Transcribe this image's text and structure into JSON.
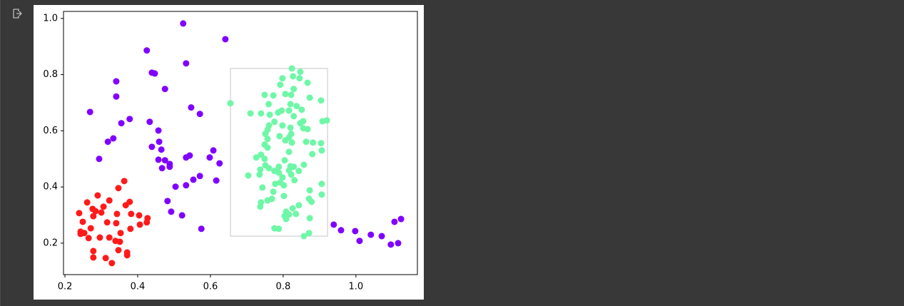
{
  "chart_data": {
    "type": "scatter",
    "xlim": [
      0.196,
      1.169
    ],
    "ylim": [
      0.088,
      1.025
    ],
    "xticks": [
      0.2,
      0.4,
      0.6,
      0.8,
      {
        "value": 1.0,
        "label": "1.0"
      }
    ],
    "yticks": [
      0.2,
      0.4,
      0.6,
      0.8,
      {
        "value": 1.0,
        "label": "1.0"
      }
    ],
    "rectangle": {
      "x": [
        0.655,
        0.922
      ],
      "y": [
        0.225,
        0.822
      ],
      "color": "#d9d9d9"
    },
    "series": [
      {
        "color": "#8000ff",
        "x": [
          0.525,
          0.641,
          0.425,
          0.533,
          0.341,
          0.439,
          0.447,
          0.475,
          0.269,
          0.341,
          0.547,
          0.571,
          0.378,
          0.355,
          0.433,
          0.457,
          0.333,
          0.318,
          0.459,
          0.439,
          0.465,
          0.608,
          0.543,
          0.533,
          0.598,
          0.294,
          0.457,
          0.475,
          0.625,
          0.488,
          0.467,
          0.488,
          0.571,
          0.553,
          0.616,
          0.504,
          0.533,
          0.482,
          0.492,
          0.522,
          0.575,
          0.939,
          0.959,
          0.998,
          1.01,
          1.041,
          1.071,
          1.096,
          1.106,
          1.116,
          1.124
        ],
        "values": [
          0.982,
          0.926,
          0.886,
          0.84,
          0.776,
          0.807,
          0.804,
          0.749,
          0.667,
          0.722,
          0.683,
          0.66,
          0.642,
          0.627,
          0.632,
          0.601,
          0.573,
          0.561,
          0.561,
          0.543,
          0.533,
          0.53,
          0.512,
          0.505,
          0.505,
          0.5,
          0.497,
          0.495,
          0.484,
          0.482,
          0.467,
          0.472,
          0.439,
          0.426,
          0.423,
          0.401,
          0.406,
          0.35,
          0.312,
          0.299,
          0.251,
          0.266,
          0.246,
          0.243,
          0.208,
          0.23,
          0.225,
          0.195,
          0.276,
          0.2,
          0.286
        ]
      },
      {
        "color": "#ff1a1a",
        "x": [
          0.363,
          0.347,
          0.29,
          0.322,
          0.378,
          0.261,
          0.306,
          0.276,
          0.367,
          0.284,
          0.239,
          0.3,
          0.343,
          0.382,
          0.278,
          0.404,
          0.427,
          0.249,
          0.316,
          0.425,
          0.341,
          0.406,
          0.38,
          0.271,
          0.243,
          0.253,
          0.353,
          0.265,
          0.296,
          0.322,
          0.339,
          0.351,
          0.278,
          0.371,
          0.347,
          0.371,
          0.312,
          0.278,
          0.329,
          0.243
        ],
        "values": [
          0.421,
          0.396,
          0.37,
          0.352,
          0.347,
          0.345,
          0.33,
          0.322,
          0.335,
          0.314,
          0.307,
          0.309,
          0.304,
          0.304,
          0.296,
          0.299,
          0.289,
          0.276,
          0.274,
          0.274,
          0.271,
          0.266,
          0.251,
          0.253,
          0.241,
          0.236,
          0.236,
          0.218,
          0.22,
          0.22,
          0.208,
          0.205,
          0.172,
          0.167,
          0.175,
          0.157,
          0.147,
          0.149,
          0.129,
          0.233
        ]
      },
      {
        "color": "#6ff7a8",
        "x": [
          0.824,
          0.847,
          0.827,
          0.845,
          0.798,
          0.867,
          0.792,
          0.829,
          0.749,
          0.773,
          0.806,
          0.822,
          0.873,
          0.904,
          0.655,
          0.76,
          0.82,
          0.837,
          0.796,
          0.816,
          0.851,
          0.71,
          0.739,
          0.786,
          0.763,
          0.829,
          0.92,
          0.908,
          0.855,
          0.776,
          0.847,
          0.761,
          0.798,
          0.82,
          0.855,
          0.867,
          0.757,
          0.751,
          0.822,
          0.79,
          0.816,
          0.757,
          0.806,
          0.824,
          0.863,
          0.882,
          0.904,
          0.749,
          0.757,
          0.906,
          0.816,
          0.88,
          0.739,
          0.726,
          0.749,
          0.804,
          0.751,
          0.857,
          0.82,
          0.788,
          0.829,
          0.761,
          0.737,
          0.816,
          0.843,
          0.776,
          0.788,
          0.704,
          0.735,
          0.822,
          0.798,
          0.831,
          0.792,
          0.778,
          0.802,
          0.743,
          0.906,
          0.873,
          0.773,
          0.906,
          0.802,
          0.871,
          0.769,
          0.757,
          0.878,
          0.739,
          0.737,
          0.843,
          0.826,
          0.808,
          0.816,
          0.804,
          0.835,
          0.808,
          0.873,
          0.776,
          0.788,
          0.871,
          0.857
        ],
        "values": [
          0.822,
          0.81,
          0.794,
          0.787,
          0.787,
          0.771,
          0.764,
          0.749,
          0.728,
          0.726,
          0.731,
          0.728,
          0.718,
          0.708,
          0.698,
          0.695,
          0.695,
          0.688,
          0.672,
          0.672,
          0.675,
          0.662,
          0.662,
          0.665,
          0.657,
          0.652,
          0.637,
          0.634,
          0.634,
          0.632,
          0.627,
          0.619,
          0.619,
          0.611,
          0.609,
          0.606,
          0.604,
          0.589,
          0.589,
          0.581,
          0.576,
          0.571,
          0.566,
          0.558,
          0.561,
          0.558,
          0.556,
          0.551,
          0.54,
          0.53,
          0.525,
          0.517,
          0.515,
          0.505,
          0.5,
          0.495,
          0.477,
          0.479,
          0.474,
          0.472,
          0.472,
          0.467,
          0.462,
          0.459,
          0.457,
          0.457,
          0.451,
          0.441,
          0.444,
          0.444,
          0.434,
          0.424,
          0.416,
          0.411,
          0.406,
          0.398,
          0.411,
          0.388,
          0.383,
          0.373,
          0.368,
          0.358,
          0.358,
          0.352,
          0.347,
          0.345,
          0.33,
          0.335,
          0.324,
          0.312,
          0.302,
          0.297,
          0.304,
          0.286,
          0.289,
          0.253,
          0.251,
          0.236,
          0.225
        ]
      }
    ]
  }
}
